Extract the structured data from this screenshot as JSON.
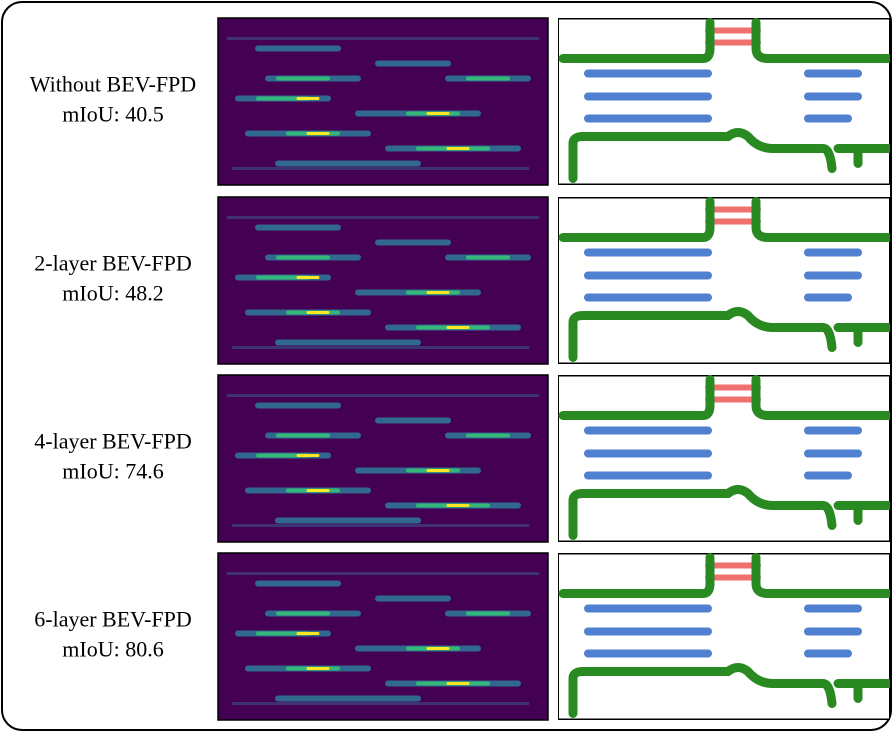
{
  "rows": [
    {
      "label": "Without BEV-FPD",
      "score": "mIoU: 40.5"
    },
    {
      "label": "2-layer BEV-FPD",
      "score": "mIoU: 48.2"
    },
    {
      "label": "4-layer BEV-FPD",
      "score": "mIoU: 74.6"
    },
    {
      "label": "6-layer BEV-FPD",
      "score": "mIoU: 80.6"
    }
  ]
}
